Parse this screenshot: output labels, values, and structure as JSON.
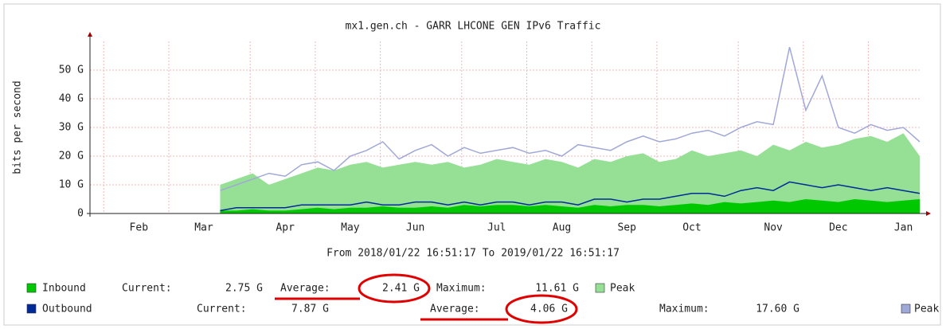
{
  "chart_data": {
    "type": "traffic",
    "title": "mx1.gen.ch - GARR LHCONE GEN IPv6 Traffic",
    "subtitle": "From 2018/01/22 16:51:17 To 2019/01/22 16:51:17",
    "y_label": "bits per second",
    "categories": [
      null,
      null,
      null,
      "Feb",
      null,
      null,
      null,
      "Mar",
      null,
      null,
      null,
      null,
      "Apr",
      null,
      null,
      null,
      "May",
      null,
      null,
      null,
      "Jun",
      null,
      null,
      null,
      null,
      "Jul",
      null,
      null,
      null,
      "Aug",
      null,
      null,
      null,
      "Sep",
      null,
      null,
      null,
      "Oct",
      null,
      null,
      null,
      null,
      "Nov",
      null,
      null,
      null,
      "Dec",
      null,
      null,
      null,
      "Jan",
      null
    ],
    "ylim": [
      0,
      60
    ],
    "yticks": [
      {
        "value": 0,
        "label": "0"
      },
      {
        "value": 10,
        "label": "10 G"
      },
      {
        "value": 20,
        "label": "20 G"
      },
      {
        "value": 30,
        "label": "30 G"
      },
      {
        "value": 40,
        "label": "40 G"
      },
      {
        "value": 50,
        "label": "50 G"
      }
    ],
    "grid": true,
    "series": [
      {
        "name": "Inbound",
        "color": "#00c800",
        "style": "area",
        "values": [
          null,
          null,
          null,
          null,
          null,
          null,
          null,
          null,
          1,
          1,
          1.5,
          1,
          1,
          1.5,
          2,
          1.5,
          2,
          2,
          2.5,
          2,
          2,
          2.5,
          2,
          3,
          2.5,
          3,
          3,
          2.5,
          3,
          2.5,
          2,
          3,
          2.5,
          3,
          3,
          2.5,
          3,
          3.5,
          3,
          4,
          3.5,
          4,
          4.5,
          4,
          5,
          4.5,
          4,
          5,
          4.5,
          4,
          4.5,
          5
        ]
      },
      {
        "name": "Peak",
        "color": "#96e096",
        "style": "area",
        "values": [
          null,
          null,
          null,
          null,
          null,
          null,
          null,
          null,
          10,
          12,
          14,
          10,
          12,
          14,
          16,
          15,
          17,
          18,
          16,
          17,
          18,
          17,
          18,
          16,
          17,
          19,
          18,
          17,
          19,
          18,
          16,
          19,
          18,
          20,
          21,
          18,
          19,
          22,
          20,
          21,
          22,
          20,
          24,
          22,
          25,
          23,
          24,
          26,
          27,
          25,
          28,
          20
        ]
      },
      {
        "name": "Outbound",
        "color": "#002a97",
        "style": "line",
        "values": [
          null,
          null,
          null,
          null,
          null,
          null,
          null,
          null,
          1,
          2,
          2,
          2,
          2,
          3,
          3,
          3,
          3,
          4,
          3,
          3,
          4,
          4,
          3,
          4,
          3,
          4,
          4,
          3,
          4,
          4,
          3,
          5,
          5,
          4,
          5,
          5,
          6,
          7,
          7,
          6,
          8,
          9,
          8,
          11,
          10,
          9,
          10,
          9,
          8,
          9,
          8,
          7
        ]
      },
      {
        "name": "Peak",
        "color": "#a0a8d8",
        "style": "line",
        "values": [
          null,
          null,
          null,
          null,
          null,
          null,
          null,
          null,
          8,
          10,
          12,
          14,
          13,
          17,
          18,
          15,
          20,
          22,
          25,
          19,
          22,
          24,
          20,
          23,
          21,
          22,
          23,
          21,
          22,
          20,
          24,
          23,
          22,
          25,
          27,
          25,
          26,
          28,
          29,
          27,
          30,
          32,
          31,
          58,
          36,
          48,
          30,
          28,
          31,
          29,
          30,
          25
        ]
      }
    ],
    "stats": [
      {
        "current_label": "Current:",
        "current": "2.75 G",
        "average_label": "Average:",
        "average": "2.41 G",
        "maximum_label": "Maximum:",
        "maximum": "11.61 G"
      },
      {
        "current_label": "Current:",
        "current": "7.87 G",
        "average_label": "Average:",
        "average": "4.06 G",
        "maximum_label": "Maximum:",
        "maximum": "17.60 G"
      }
    ]
  }
}
